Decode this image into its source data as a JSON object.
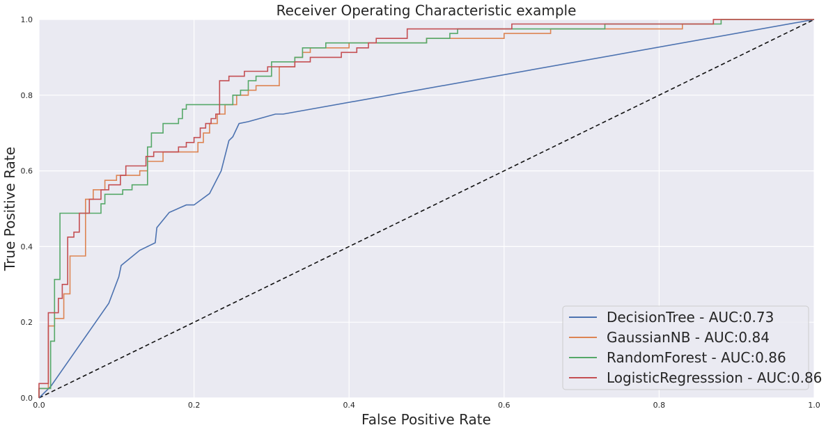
{
  "chart_data": {
    "type": "line",
    "title": "Receiver Operating Characteristic example",
    "xlabel": "False Positive Rate",
    "ylabel": "True Positive Rate",
    "xlim": [
      0,
      1
    ],
    "ylim": [
      0,
      1
    ],
    "xticks": [
      0.0,
      0.2,
      0.4,
      0.6,
      0.8,
      1.0
    ],
    "yticks": [
      0.0,
      0.2,
      0.4,
      0.6,
      0.8,
      1.0
    ],
    "xtick_labels": [
      "0.0",
      "0.2",
      "0.4",
      "0.6",
      "0.8",
      "1.0"
    ],
    "ytick_labels": [
      "0.0",
      "0.2",
      "0.4",
      "0.6",
      "0.8",
      "1.0"
    ],
    "grid": true,
    "legend_position": "lower-right",
    "series": [
      {
        "name": "DecisionTree - AUC:0.73",
        "color": "#4c72b0",
        "step": false,
        "points": [
          [
            0,
            0
          ],
          [
            0.015,
            0.03
          ],
          [
            0.09,
            0.25
          ],
          [
            0.103,
            0.32
          ],
          [
            0.106,
            0.35
          ],
          [
            0.13,
            0.39
          ],
          [
            0.15,
            0.41
          ],
          [
            0.152,
            0.45
          ],
          [
            0.168,
            0.49
          ],
          [
            0.19,
            0.51
          ],
          [
            0.2,
            0.51
          ],
          [
            0.22,
            0.54
          ],
          [
            0.235,
            0.6
          ],
          [
            0.245,
            0.68
          ],
          [
            0.25,
            0.69
          ],
          [
            0.258,
            0.725
          ],
          [
            0.27,
            0.73
          ],
          [
            0.305,
            0.75
          ],
          [
            0.315,
            0.75
          ],
          [
            1,
            1
          ]
        ]
      },
      {
        "name": "GaussianNB - AUC:0.84",
        "color": "#dd8452",
        "step": true,
        "points": [
          [
            0,
            0
          ],
          [
            0,
            0.025
          ],
          [
            0.012,
            0.025
          ],
          [
            0.012,
            0.19
          ],
          [
            0.02,
            0.19
          ],
          [
            0.02,
            0.21
          ],
          [
            0.032,
            0.21
          ],
          [
            0.032,
            0.275
          ],
          [
            0.04,
            0.275
          ],
          [
            0.04,
            0.375
          ],
          [
            0.06,
            0.375
          ],
          [
            0.06,
            0.525
          ],
          [
            0.07,
            0.525
          ],
          [
            0.07,
            0.55
          ],
          [
            0.085,
            0.55
          ],
          [
            0.085,
            0.575
          ],
          [
            0.1,
            0.575
          ],
          [
            0.1,
            0.588
          ],
          [
            0.13,
            0.588
          ],
          [
            0.13,
            0.6
          ],
          [
            0.14,
            0.6
          ],
          [
            0.14,
            0.625
          ],
          [
            0.16,
            0.625
          ],
          [
            0.16,
            0.65
          ],
          [
            0.205,
            0.65
          ],
          [
            0.205,
            0.675
          ],
          [
            0.212,
            0.675
          ],
          [
            0.212,
            0.7
          ],
          [
            0.22,
            0.7
          ],
          [
            0.22,
            0.725
          ],
          [
            0.23,
            0.725
          ],
          [
            0.23,
            0.75
          ],
          [
            0.24,
            0.75
          ],
          [
            0.24,
            0.775
          ],
          [
            0.255,
            0.775
          ],
          [
            0.255,
            0.8
          ],
          [
            0.27,
            0.8
          ],
          [
            0.27,
            0.813
          ],
          [
            0.28,
            0.813
          ],
          [
            0.28,
            0.825
          ],
          [
            0.31,
            0.825
          ],
          [
            0.31,
            0.875
          ],
          [
            0.33,
            0.875
          ],
          [
            0.33,
            0.9
          ],
          [
            0.34,
            0.9
          ],
          [
            0.34,
            0.913
          ],
          [
            0.35,
            0.913
          ],
          [
            0.35,
            0.925
          ],
          [
            0.4,
            0.925
          ],
          [
            0.4,
            0.938
          ],
          [
            0.5,
            0.938
          ],
          [
            0.5,
            0.95
          ],
          [
            0.6,
            0.95
          ],
          [
            0.6,
            0.963
          ],
          [
            0.66,
            0.963
          ],
          [
            0.66,
            0.975
          ],
          [
            0.83,
            0.975
          ],
          [
            0.83,
            0.988
          ],
          [
            0.87,
            0.988
          ],
          [
            0.87,
            1.0
          ],
          [
            1.0,
            1.0
          ]
        ]
      },
      {
        "name": "RandomForest - AUC:0.86",
        "color": "#55a868",
        "step": true,
        "points": [
          [
            0,
            0
          ],
          [
            0,
            0.025
          ],
          [
            0.015,
            0.025
          ],
          [
            0.015,
            0.15
          ],
          [
            0.02,
            0.15
          ],
          [
            0.02,
            0.313
          ],
          [
            0.027,
            0.313
          ],
          [
            0.027,
            0.488
          ],
          [
            0.08,
            0.488
          ],
          [
            0.08,
            0.513
          ],
          [
            0.085,
            0.513
          ],
          [
            0.085,
            0.538
          ],
          [
            0.108,
            0.538
          ],
          [
            0.108,
            0.55
          ],
          [
            0.12,
            0.55
          ],
          [
            0.12,
            0.563
          ],
          [
            0.14,
            0.563
          ],
          [
            0.14,
            0.663
          ],
          [
            0.145,
            0.663
          ],
          [
            0.145,
            0.7
          ],
          [
            0.16,
            0.7
          ],
          [
            0.16,
            0.725
          ],
          [
            0.18,
            0.725
          ],
          [
            0.18,
            0.738
          ],
          [
            0.185,
            0.738
          ],
          [
            0.185,
            0.763
          ],
          [
            0.19,
            0.763
          ],
          [
            0.19,
            0.775
          ],
          [
            0.25,
            0.775
          ],
          [
            0.25,
            0.8
          ],
          [
            0.26,
            0.8
          ],
          [
            0.26,
            0.813
          ],
          [
            0.27,
            0.813
          ],
          [
            0.27,
            0.838
          ],
          [
            0.28,
            0.838
          ],
          [
            0.28,
            0.85
          ],
          [
            0.3,
            0.85
          ],
          [
            0.3,
            0.888
          ],
          [
            0.33,
            0.888
          ],
          [
            0.33,
            0.9
          ],
          [
            0.34,
            0.9
          ],
          [
            0.34,
            0.925
          ],
          [
            0.37,
            0.925
          ],
          [
            0.37,
            0.938
          ],
          [
            0.5,
            0.938
          ],
          [
            0.5,
            0.95
          ],
          [
            0.53,
            0.95
          ],
          [
            0.53,
            0.963
          ],
          [
            0.54,
            0.963
          ],
          [
            0.54,
            0.975
          ],
          [
            0.73,
            0.975
          ],
          [
            0.73,
            0.988
          ],
          [
            0.88,
            0.988
          ],
          [
            0.88,
            1.0
          ],
          [
            1.0,
            1.0
          ]
        ]
      },
      {
        "name": "LogisticRegresssion - AUC:0.86",
        "color": "#c44e52",
        "step": true,
        "points": [
          [
            0,
            0
          ],
          [
            0,
            0.038
          ],
          [
            0.012,
            0.038
          ],
          [
            0.012,
            0.225
          ],
          [
            0.025,
            0.225
          ],
          [
            0.025,
            0.263
          ],
          [
            0.03,
            0.263
          ],
          [
            0.03,
            0.3
          ],
          [
            0.037,
            0.3
          ],
          [
            0.037,
            0.425
          ],
          [
            0.045,
            0.425
          ],
          [
            0.045,
            0.438
          ],
          [
            0.052,
            0.438
          ],
          [
            0.052,
            0.488
          ],
          [
            0.065,
            0.488
          ],
          [
            0.065,
            0.525
          ],
          [
            0.08,
            0.525
          ],
          [
            0.08,
            0.55
          ],
          [
            0.09,
            0.55
          ],
          [
            0.09,
            0.563
          ],
          [
            0.105,
            0.563
          ],
          [
            0.105,
            0.588
          ],
          [
            0.112,
            0.588
          ],
          [
            0.112,
            0.613
          ],
          [
            0.138,
            0.613
          ],
          [
            0.138,
            0.638
          ],
          [
            0.148,
            0.638
          ],
          [
            0.148,
            0.65
          ],
          [
            0.18,
            0.65
          ],
          [
            0.18,
            0.663
          ],
          [
            0.19,
            0.663
          ],
          [
            0.19,
            0.675
          ],
          [
            0.2,
            0.675
          ],
          [
            0.2,
            0.688
          ],
          [
            0.208,
            0.688
          ],
          [
            0.208,
            0.713
          ],
          [
            0.215,
            0.713
          ],
          [
            0.215,
            0.725
          ],
          [
            0.222,
            0.725
          ],
          [
            0.222,
            0.738
          ],
          [
            0.228,
            0.738
          ],
          [
            0.228,
            0.75
          ],
          [
            0.233,
            0.75
          ],
          [
            0.233,
            0.838
          ],
          [
            0.245,
            0.838
          ],
          [
            0.245,
            0.85
          ],
          [
            0.265,
            0.85
          ],
          [
            0.265,
            0.863
          ],
          [
            0.295,
            0.863
          ],
          [
            0.295,
            0.875
          ],
          [
            0.33,
            0.875
          ],
          [
            0.33,
            0.888
          ],
          [
            0.35,
            0.888
          ],
          [
            0.35,
            0.9
          ],
          [
            0.39,
            0.9
          ],
          [
            0.39,
            0.913
          ],
          [
            0.41,
            0.913
          ],
          [
            0.41,
            0.925
          ],
          [
            0.425,
            0.925
          ],
          [
            0.425,
            0.938
          ],
          [
            0.435,
            0.938
          ],
          [
            0.435,
            0.95
          ],
          [
            0.475,
            0.95
          ],
          [
            0.475,
            0.975
          ],
          [
            0.61,
            0.975
          ],
          [
            0.61,
            0.988
          ],
          [
            0.87,
            0.988
          ],
          [
            0.87,
            1.0
          ],
          [
            1.0,
            1.0
          ]
        ]
      }
    ],
    "reference_line": {
      "points": [
        [
          0,
          0
        ],
        [
          1,
          1
        ]
      ],
      "color": "#111111",
      "dashed": true
    }
  }
}
